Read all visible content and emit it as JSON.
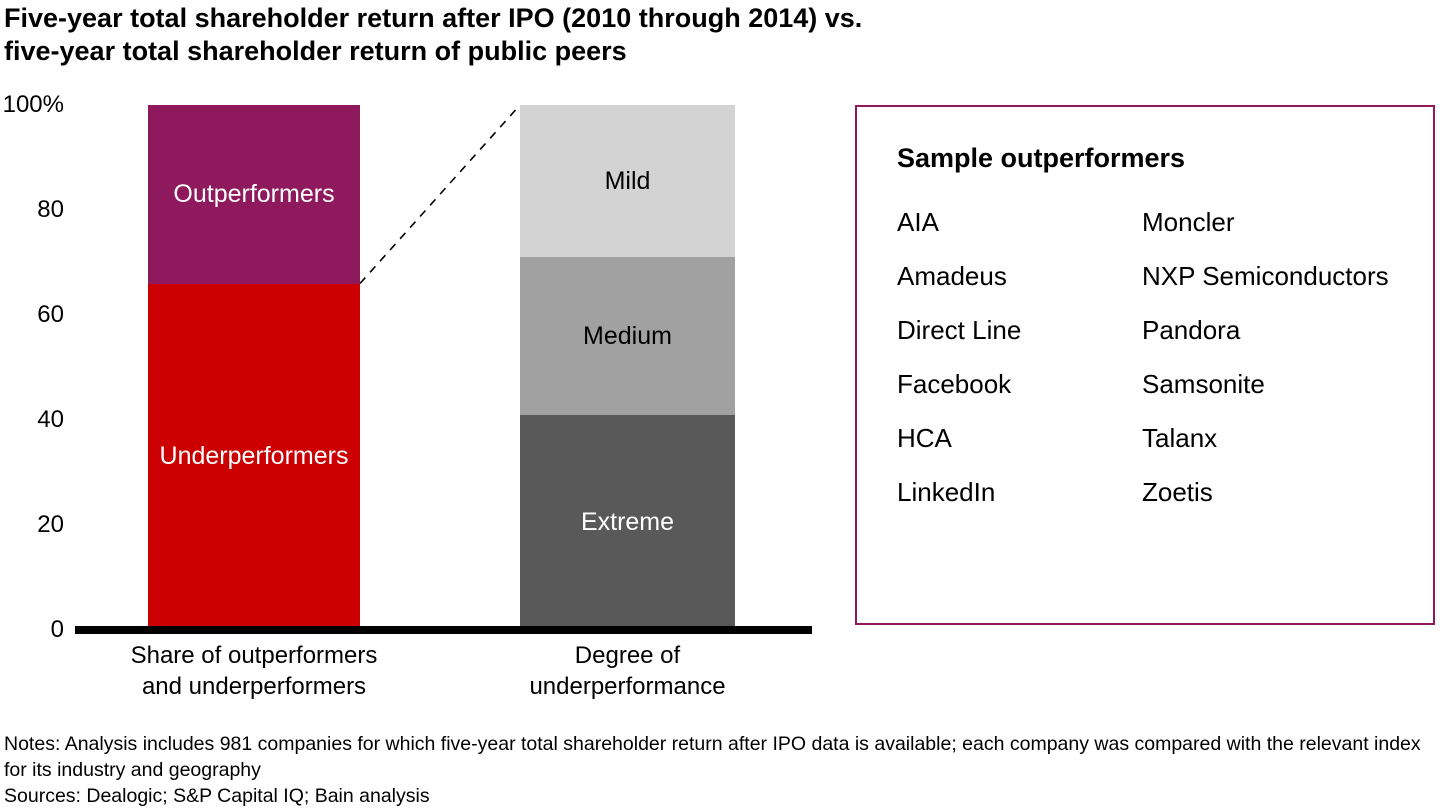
{
  "title": {
    "line1": "Five-year total shareholder return after IPO (2010 through 2014) vs.",
    "line2": "five-year total shareholder return of public peers"
  },
  "chart_data": {
    "type": "bar",
    "stacked": true,
    "title": "Five-year total shareholder return after IPO (2010 through 2014) vs. five-year total shareholder return of public peers",
    "ylabel": "",
    "xlabel": "",
    "ylim": [
      0,
      100
    ],
    "grid": false,
    "yticks": [
      {
        "value": 0,
        "label": "0"
      },
      {
        "value": 20,
        "label": "20"
      },
      {
        "value": 40,
        "label": "40"
      },
      {
        "value": 60,
        "label": "60"
      },
      {
        "value": 80,
        "label": "80"
      },
      {
        "value": 100,
        "label": "100%"
      }
    ],
    "bars": [
      {
        "category": "Share of outperformers\nand underperformers",
        "segments": [
          {
            "label": "Underperformers",
            "value": 66,
            "color": "#cc0000",
            "text_color": "#ffffff"
          },
          {
            "label": "Outperformers",
            "value": 34,
            "color": "#8e195c",
            "text_color": "#ffffff"
          }
        ]
      },
      {
        "category": "Degree of\nunderperformance",
        "segments": [
          {
            "label": "Extreme",
            "value": 41,
            "color": "#595959",
            "text_color": "#ffffff"
          },
          {
            "label": "Medium",
            "value": 30,
            "color": "#a1a1a1",
            "text_color": "#000000"
          },
          {
            "label": "Mild",
            "value": 29,
            "color": "#d3d3d3",
            "text_color": "#000000"
          }
        ]
      }
    ],
    "connector": {
      "from_bar": 0,
      "from_value": 66,
      "to_bar": 1,
      "to_value": 100,
      "style": "dashed",
      "color": "#000000"
    }
  },
  "panel": {
    "title": "Sample outperformers",
    "border_color": "#8e195c",
    "columns": [
      [
        "AIA",
        "Amadeus",
        "Direct Line",
        "Facebook",
        "HCA",
        "LinkedIn"
      ],
      [
        "Moncler",
        "NXP Semiconductors",
        "Pandora",
        "Samsonite",
        "Talanx",
        "Zoetis"
      ]
    ]
  },
  "footer": {
    "notes": "Notes: Analysis includes 981 companies for which five-year total shareholder return after IPO data is available; each company was compared with the relevant index for its industry and geography",
    "sources": "Sources: Dealogic; S&P Capital IQ; Bain analysis"
  }
}
